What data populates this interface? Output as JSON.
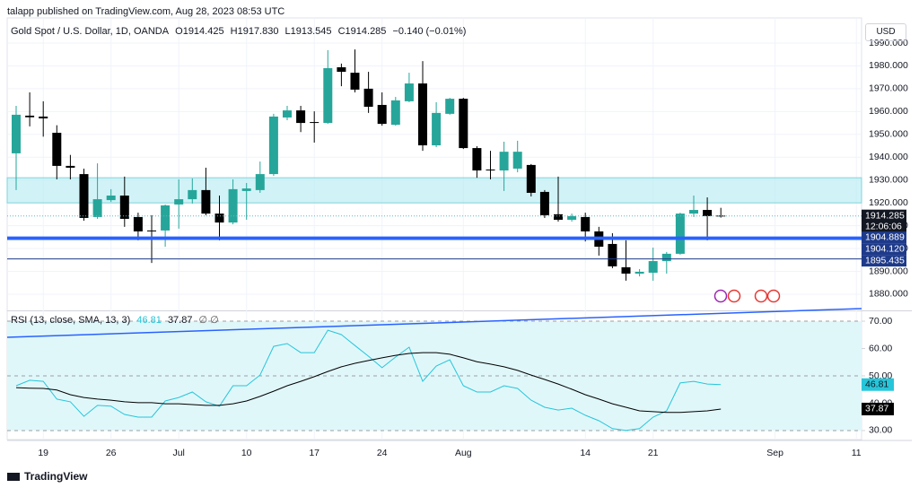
{
  "header": {
    "published": "talapp published on TradingView.com, Aug 28, 2023 08:53 UTC",
    "ohlc": [
      "O1914.425",
      "H1917.830",
      "L1913.545",
      "C1914.285",
      "−0.140 (−0.01%)"
    ],
    "currency": "USD",
    "brand": "TradingView"
  },
  "chart_data": [
    {
      "type": "candlestick",
      "title": "Gold Spot / U.S. Dollar, 1D, OANDA",
      "categories": [
        null,
        null,
        "19",
        null,
        null,
        null,
        null,
        "26",
        null,
        null,
        null,
        null,
        "Jul",
        null,
        null,
        null,
        null,
        "10",
        null,
        null,
        null,
        null,
        "17",
        null,
        null,
        null,
        null,
        "24",
        null,
        null,
        null,
        null,
        null,
        "Aug",
        null,
        null,
        null,
        null,
        null,
        null,
        null,
        null,
        "14",
        null,
        null,
        null,
        null,
        "21",
        null,
        null,
        null,
        null,
        null,
        null,
        null,
        null,
        "Sep",
        null,
        null,
        null,
        null,
        null,
        "11"
      ],
      "open": [
        1941.7,
        1958.2,
        1957.8,
        1950.7,
        1936.2,
        1932.6,
        1913.8,
        1921.2,
        1923.2,
        1913.8,
        1907.9,
        1907.9,
        1919.3,
        1921.6,
        1925.6,
        1915.3,
        1911.4,
        1925.2,
        1925.6,
        1932.6,
        1957.4,
        1960.5,
        1955.4,
        1955,
        1979.4,
        1977,
        1970,
        1962.9,
        1954.2,
        1964.5,
        1972.3,
        1945.2,
        1959,
        1965.6,
        1944,
        1934.6,
        1934.2,
        1935,
        1936.6,
        1924.8,
        1915,
        1912.6,
        1913.8,
        1907.5,
        1902,
        1891.8,
        1889,
        1889.4,
        1894.5,
        1897.7,
        1915.3,
        1916.9,
        1914.425,
        null,
        null,
        null,
        null,
        null,
        null,
        null,
        null,
        null,
        null
      ],
      "high": [
        1962.5,
        1968.4,
        1964.5,
        1954,
        1941,
        1935,
        1937.3,
        1926,
        1931.5,
        1915.7,
        1914.6,
        1919.3,
        1930.3,
        1930.7,
        1935.4,
        1923.2,
        1930.3,
        1928.7,
        1938.1,
        1959,
        1962.5,
        1962.5,
        1960.1,
        1986.9,
        1981,
        1987.2,
        1977.4,
        1968.4,
        1966.4,
        1977,
        1982.1,
        1964.1,
        1966,
        1966,
        1944.8,
        1942.8,
        1946.8,
        1947.2,
        1937,
        1925.6,
        1931.5,
        1915.3,
        1915.7,
        1909.5,
        1906.7,
        1903.6,
        1891,
        1900.4,
        1898.5,
        1915.7,
        1923.2,
        1922.4,
        1917.83,
        null,
        null,
        null,
        null,
        null,
        null,
        null,
        null,
        null,
        null
      ],
      "low": [
        1925.6,
        1953.5,
        1949,
        1930.3,
        1930.3,
        1912.2,
        1913,
        1920.4,
        1909.5,
        1903.6,
        1893.7,
        1900.8,
        1908.7,
        1919.7,
        1914.6,
        1903.6,
        1910.6,
        1912.6,
        1924.4,
        1931.8,
        1956.2,
        1951,
        1946.4,
        1954.6,
        1971.1,
        1968.4,
        1959.4,
        1953.8,
        1953.8,
        1964.1,
        1942.8,
        1944.4,
        1958.6,
        1943.6,
        1931,
        1930.3,
        1925.2,
        1933.4,
        1922.8,
        1913.4,
        1911.8,
        1911.8,
        1903.1,
        1896.9,
        1891.4,
        1885.9,
        1887.8,
        1885.9,
        1889,
        1897.3,
        1913.8,
        1903.6,
        1913.545,
        null,
        null,
        null,
        null,
        null,
        null,
        null,
        null,
        null,
        null
      ],
      "close": [
        1958.6,
        1957.5,
        1957,
        1936.2,
        1935.4,
        1913.4,
        1921.6,
        1923.2,
        1913,
        1907.5,
        1907.5,
        1918.9,
        1921.6,
        1925.6,
        1915.3,
        1911.4,
        1926,
        1926.3,
        1932.6,
        1957.8,
        1960.5,
        1955,
        1955,
        1979,
        1977.4,
        1969.6,
        1962.1,
        1954.6,
        1964.9,
        1972.3,
        1945.2,
        1959.4,
        1965.6,
        1944,
        1934.2,
        1934.2,
        1942.4,
        1942.4,
        1924.4,
        1914.6,
        1912.6,
        1914.2,
        1907.5,
        1900.8,
        1892.2,
        1889,
        1889.8,
        1894.5,
        1897.7,
        1915.3,
        1916.9,
        1914.2,
        1914.285,
        null,
        null,
        null,
        null,
        null,
        null,
        null,
        null,
        null,
        null
      ],
      "up_color": "#26a69a",
      "down_color": "#000000",
      "ylim": [
        1873.3,
        2001
      ],
      "yticks": [
        {
          "value": 1880,
          "label": "1880.000"
        },
        {
          "value": 1890,
          "label": "1890.000"
        },
        {
          "value": 1900,
          "label": "1900.000"
        },
        {
          "value": 1910,
          "label": "1910.000"
        },
        {
          "value": 1920,
          "label": "1920.000"
        },
        {
          "value": 1930,
          "label": "1930.000"
        },
        {
          "value": 1940,
          "label": "1940.000"
        },
        {
          "value": 1950,
          "label": "1950.000"
        },
        {
          "value": 1960,
          "label": "1960.000"
        },
        {
          "value": 1970,
          "label": "1970.000"
        },
        {
          "value": 1980,
          "label": "1980.000"
        },
        {
          "value": 1990,
          "label": "1990.000"
        }
      ],
      "grid": true,
      "zone": [
        1920,
        1931
      ],
      "zone_color": "#b2ebf2",
      "levels": [
        1904.889,
        {
          "value": 1904.12,
          "label": "1904.120"
        },
        1895.435
      ],
      "level_color": "#2962ff",
      "level_label_color": "#1e3a8a",
      "countdown": "12:06:06"
    },
    {
      "type": "line",
      "title": "RSI (13, close, SMA, 13, 3)",
      "legend_extra": "∅ ∅",
      "series": [
        {
          "name": "RSI",
          "color": "#26c6da",
          "values": [
            46.4,
            48.4,
            48,
            41.5,
            40.5,
            35.2,
            39.2,
            38.9,
            35.9,
            34.9,
            34.9,
            40.8,
            42.1,
            44.1,
            40.5,
            38.9,
            46.4,
            46.4,
            50.3,
            60.8,
            61.8,
            58.5,
            58.5,
            66.7,
            65.1,
            61.1,
            57.2,
            53,
            56.9,
            60.5,
            48,
            53.6,
            55.9,
            46.4,
            44.1,
            44.1,
            46.4,
            45.4,
            41.1,
            38.5,
            37.5,
            38.2,
            35.6,
            33.6,
            30.7,
            30,
            30.7,
            34.9,
            37.2,
            47.4,
            48,
            47,
            46.81,
            null,
            null,
            null,
            null,
            null,
            null,
            null,
            null,
            null,
            null
          ]
        },
        {
          "name": "SMA",
          "color": "#000000",
          "values": [
            45.7,
            45.5,
            45.4,
            44.8,
            43.1,
            42.1,
            41.5,
            41.1,
            40.5,
            40.2,
            40.2,
            39.8,
            39.8,
            39.5,
            39.2,
            39.2,
            39.8,
            40.8,
            42.5,
            44.4,
            46.4,
            48,
            49.7,
            51.6,
            53.3,
            54.6,
            55.6,
            56.6,
            57.5,
            58.2,
            58.5,
            58.5,
            57.9,
            56.6,
            55.2,
            54.3,
            53.3,
            52,
            50.3,
            48.7,
            47,
            45.1,
            43.1,
            41.5,
            39.8,
            38.5,
            37.2,
            36.9,
            36.6,
            36.6,
            36.9,
            37.2,
            37.87,
            null,
            null,
            null,
            null,
            null,
            null,
            null,
            null,
            null,
            null
          ]
        }
      ],
      "ylim": [
        26.7,
        73.3
      ],
      "yticks": [
        {
          "value": 30,
          "label": "30.00"
        },
        {
          "value": 40,
          "label": "40.00"
        },
        {
          "value": 50,
          "label": "50.00"
        },
        {
          "value": 60,
          "label": "60.00"
        },
        {
          "value": 70,
          "label": "70.00"
        }
      ],
      "band": [
        30,
        70
      ],
      "middle": 50,
      "band_color": "#e0f7fa",
      "trendline": [
        64.1,
        74.6
      ],
      "trendline_color": "#2962ff"
    }
  ]
}
